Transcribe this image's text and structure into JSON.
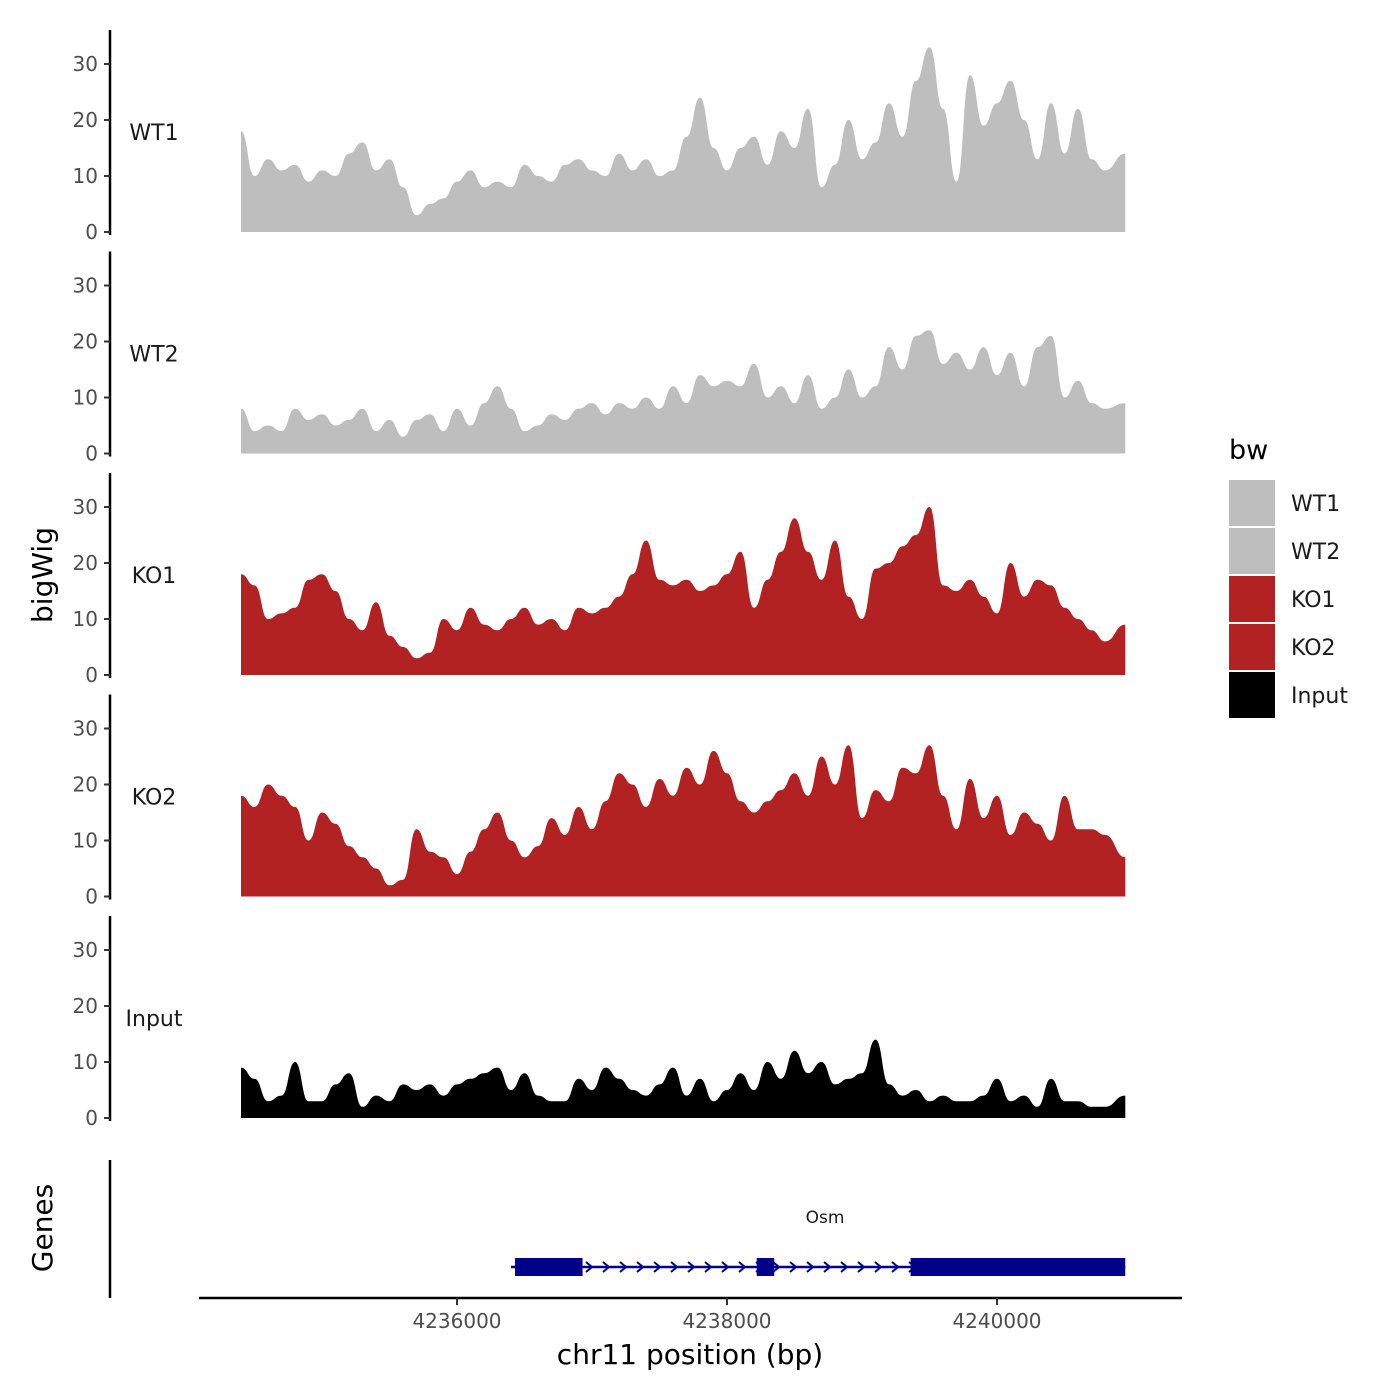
{
  "chart_data": {
    "type": "area",
    "chromosome_label": "chr11 position (bp)",
    "ylabel": "bigWig",
    "genes_label": "Genes",
    "legend_title": "bw",
    "ylim": [
      0,
      35
    ],
    "yticks": [
      0,
      10,
      20,
      30
    ],
    "x_range": [
      4234400,
      4240950
    ],
    "xticks": [
      4236000,
      4238000,
      4240000
    ],
    "xtick_labels": [
      "4236000",
      "4238000",
      "4240000"
    ],
    "tracks": [
      {
        "name": "WT1",
        "color": "#bebebe",
        "x": [
          4234400,
          4234500,
          4234600,
          4234700,
          4234800,
          4234900,
          4235000,
          4235100,
          4235200,
          4235300,
          4235400,
          4235500,
          4235600,
          4235700,
          4235800,
          4235900,
          4236000,
          4236100,
          4236200,
          4236300,
          4236400,
          4236500,
          4236600,
          4236700,
          4236800,
          4236900,
          4237000,
          4237100,
          4237200,
          4237300,
          4237400,
          4237500,
          4237600,
          4237700,
          4237800,
          4237900,
          4238000,
          4238100,
          4238200,
          4238300,
          4238400,
          4238500,
          4238600,
          4238700,
          4238800,
          4238900,
          4239000,
          4239100,
          4239200,
          4239300,
          4239400,
          4239500,
          4239600,
          4239700,
          4239800,
          4239900,
          4240000,
          4240100,
          4240200,
          4240300,
          4240400,
          4240500,
          4240600,
          4240700,
          4240800,
          4240950
        ],
        "y": [
          18,
          10,
          13,
          11,
          12,
          9,
          11,
          10,
          14,
          16,
          11,
          13,
          8,
          3,
          5,
          6,
          9,
          11,
          8,
          9,
          8,
          12,
          10,
          9,
          12,
          13,
          11,
          10,
          14,
          11,
          13,
          10,
          11,
          17,
          24,
          15,
          11,
          15,
          17,
          12,
          18,
          15,
          22,
          8,
          12,
          20,
          13,
          16,
          23,
          17,
          27,
          33,
          22,
          9,
          28,
          19,
          23,
          27,
          20,
          13,
          23,
          14,
          22,
          13,
          11,
          14
        ]
      },
      {
        "name": "WT2",
        "color": "#bebebe",
        "x": [
          4234400,
          4234500,
          4234600,
          4234700,
          4234800,
          4234900,
          4235000,
          4235100,
          4235200,
          4235300,
          4235400,
          4235500,
          4235600,
          4235700,
          4235800,
          4235900,
          4236000,
          4236100,
          4236200,
          4236300,
          4236400,
          4236500,
          4236600,
          4236700,
          4236800,
          4236900,
          4237000,
          4237100,
          4237200,
          4237300,
          4237400,
          4237500,
          4237600,
          4237700,
          4237800,
          4237900,
          4238000,
          4238100,
          4238200,
          4238300,
          4238400,
          4238500,
          4238600,
          4238700,
          4238800,
          4238900,
          4239000,
          4239100,
          4239200,
          4239300,
          4239400,
          4239500,
          4239600,
          4239700,
          4239800,
          4239900,
          4240000,
          4240100,
          4240200,
          4240300,
          4240400,
          4240500,
          4240600,
          4240700,
          4240800,
          4240950
        ],
        "y": [
          8,
          4,
          5,
          4,
          8,
          6,
          7,
          5,
          6,
          8,
          4,
          6,
          3,
          6,
          7,
          4,
          8,
          5,
          9,
          12,
          8,
          4,
          5,
          7,
          6,
          8,
          9,
          7,
          9,
          8,
          10,
          8,
          12,
          9,
          14,
          12,
          13,
          12,
          16,
          10,
          12,
          9,
          14,
          8,
          10,
          15,
          10,
          12,
          19,
          15,
          21,
          22,
          16,
          18,
          15,
          19,
          14,
          18,
          12,
          19,
          21,
          10,
          13,
          9,
          8,
          9
        ]
      },
      {
        "name": "KO1",
        "color": "#b22222",
        "x": [
          4234400,
          4234500,
          4234600,
          4234700,
          4234800,
          4234900,
          4235000,
          4235100,
          4235200,
          4235300,
          4235400,
          4235500,
          4235600,
          4235700,
          4235800,
          4235900,
          4236000,
          4236100,
          4236200,
          4236300,
          4236400,
          4236500,
          4236600,
          4236700,
          4236800,
          4236900,
          4237000,
          4237100,
          4237200,
          4237300,
          4237400,
          4237500,
          4237600,
          4237700,
          4237800,
          4237900,
          4238000,
          4238100,
          4238200,
          4238300,
          4238400,
          4238500,
          4238600,
          4238700,
          4238800,
          4238900,
          4239000,
          4239100,
          4239200,
          4239300,
          4239400,
          4239500,
          4239600,
          4239700,
          4239800,
          4239900,
          4240000,
          4240100,
          4240200,
          4240300,
          4240400,
          4240500,
          4240600,
          4240700,
          4240800,
          4240950
        ],
        "y": [
          18,
          16,
          10,
          11,
          12,
          17,
          18,
          15,
          10,
          8,
          13,
          7,
          5,
          3,
          4,
          10,
          8,
          12,
          9,
          8,
          10,
          12,
          9,
          10,
          8,
          12,
          11,
          12,
          14,
          18,
          24,
          17,
          16,
          17,
          15,
          16,
          18,
          22,
          12,
          17,
          22,
          28,
          22,
          17,
          24,
          14,
          10,
          19,
          20,
          23,
          25,
          30,
          16,
          15,
          17,
          14,
          11,
          20,
          14,
          17,
          16,
          12,
          10,
          8,
          6,
          9
        ]
      },
      {
        "name": "KO2",
        "color": "#b22222",
        "x": [
          4234400,
          4234500,
          4234600,
          4234700,
          4234800,
          4234900,
          4235000,
          4235100,
          4235200,
          4235300,
          4235400,
          4235500,
          4235600,
          4235700,
          4235800,
          4235900,
          4236000,
          4236100,
          4236200,
          4236300,
          4236400,
          4236500,
          4236600,
          4236700,
          4236800,
          4236900,
          4237000,
          4237100,
          4237200,
          4237300,
          4237400,
          4237500,
          4237600,
          4237700,
          4237800,
          4237900,
          4238000,
          4238100,
          4238200,
          4238300,
          4238400,
          4238500,
          4238600,
          4238700,
          4238800,
          4238900,
          4239000,
          4239100,
          4239200,
          4239300,
          4239400,
          4239500,
          4239600,
          4239700,
          4239800,
          4239900,
          4240000,
          4240100,
          4240200,
          4240300,
          4240400,
          4240500,
          4240600,
          4240700,
          4240800,
          4240950
        ],
        "y": [
          18,
          16,
          20,
          18,
          16,
          10,
          15,
          13,
          9,
          7,
          5,
          2,
          3,
          12,
          8,
          7,
          4,
          8,
          12,
          15,
          10,
          7,
          9,
          14,
          11,
          16,
          12,
          17,
          22,
          20,
          16,
          21,
          18,
          23,
          20,
          26,
          22,
          17,
          15,
          17,
          19,
          22,
          18,
          25,
          20,
          27,
          14,
          19,
          17,
          23,
          22,
          27,
          18,
          12,
          21,
          14,
          18,
          11,
          15,
          13,
          10,
          18,
          12,
          12,
          11,
          7
        ]
      },
      {
        "name": "Input",
        "color": "#000000",
        "x": [
          4234400,
          4234500,
          4234600,
          4234700,
          4234800,
          4234900,
          4235000,
          4235100,
          4235200,
          4235300,
          4235400,
          4235500,
          4235600,
          4235700,
          4235800,
          4235900,
          4236000,
          4236100,
          4236200,
          4236300,
          4236400,
          4236500,
          4236600,
          4236700,
          4236800,
          4236900,
          4237000,
          4237100,
          4237200,
          4237300,
          4237400,
          4237500,
          4237600,
          4237700,
          4237800,
          4237900,
          4238000,
          4238100,
          4238200,
          4238300,
          4238400,
          4238500,
          4238600,
          4238700,
          4238800,
          4238900,
          4239000,
          4239100,
          4239200,
          4239300,
          4239400,
          4239500,
          4239600,
          4239700,
          4239800,
          4239900,
          4240000,
          4240100,
          4240200,
          4240300,
          4240400,
          4240500,
          4240600,
          4240700,
          4240800,
          4240950
        ],
        "y": [
          9,
          7,
          3,
          4,
          10,
          3,
          3,
          6,
          8,
          2,
          4,
          3,
          6,
          5,
          6,
          4,
          6,
          7,
          8,
          9,
          5,
          8,
          4,
          3,
          3,
          7,
          5,
          9,
          7,
          5,
          4,
          6,
          9,
          4,
          7,
          3,
          5,
          8,
          5,
          10,
          7,
          12,
          8,
          10,
          6,
          7,
          8,
          14,
          6,
          4,
          5,
          3,
          4,
          3,
          3,
          4,
          7,
          3,
          4,
          2,
          7,
          3,
          3,
          2,
          2,
          4
        ]
      }
    ],
    "gene": {
      "name": "Osm",
      "color": "#00008b",
      "start": 4236400,
      "end": 4240950,
      "exons": [
        [
          4236430,
          4236930
        ],
        [
          4238220,
          4238350
        ],
        [
          4239360,
          4240950
        ]
      ]
    },
    "legend": [
      {
        "label": "WT1",
        "color": "#bebebe"
      },
      {
        "label": "WT2",
        "color": "#bebebe"
      },
      {
        "label": "KO1",
        "color": "#b22222"
      },
      {
        "label": "KO2",
        "color": "#b22222"
      },
      {
        "label": "Input",
        "color": "#000000"
      }
    ]
  }
}
